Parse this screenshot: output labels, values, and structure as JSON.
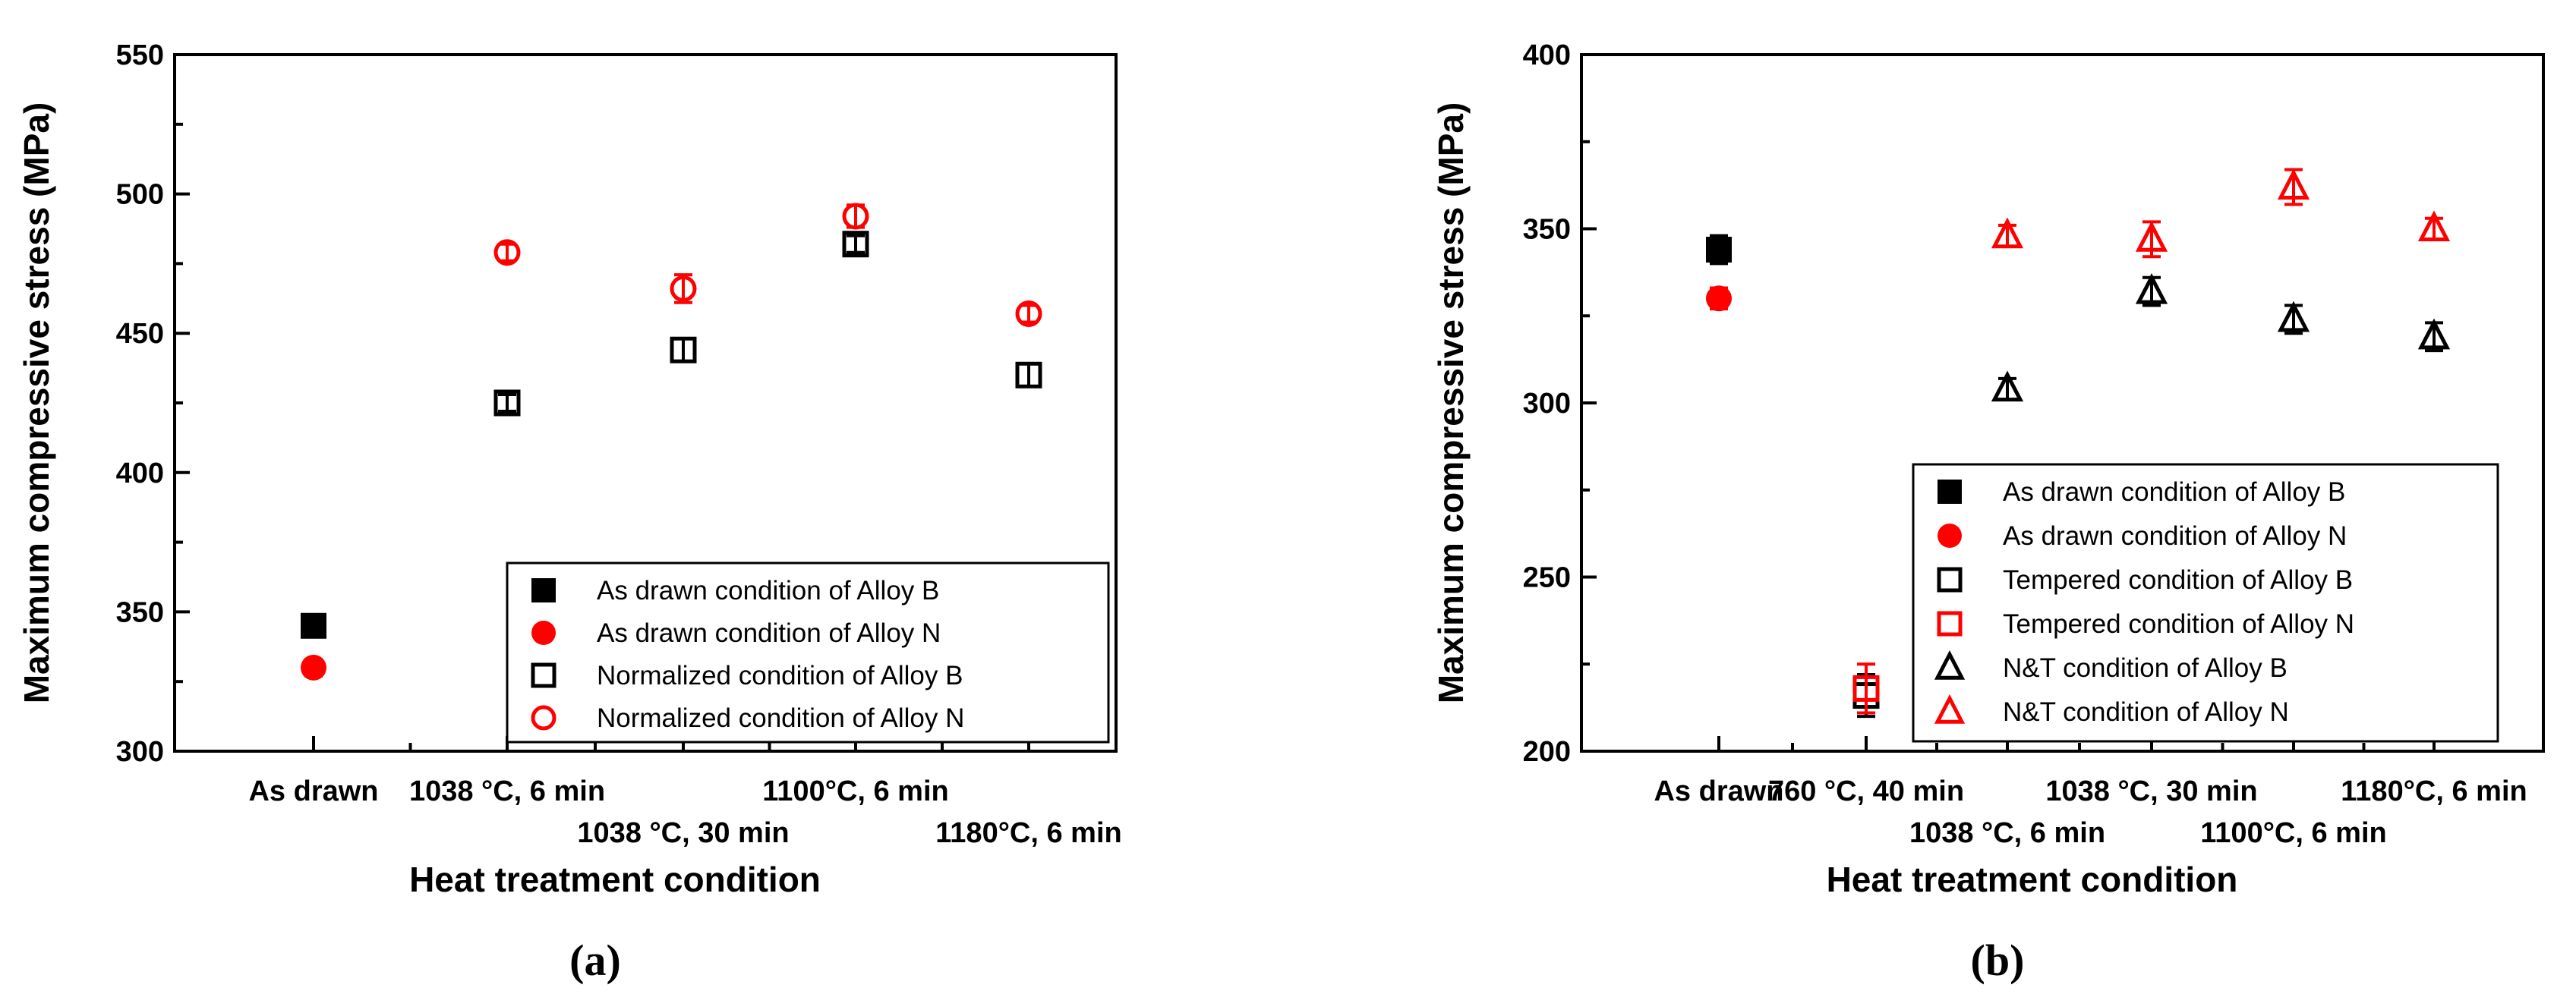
{
  "chart_data": [
    {
      "type": "scatter",
      "panel_label": "(a)",
      "xlabel": "Heat treatment condition",
      "ylabel": "Maximum compressive stress (MPa)",
      "ylim": [
        300,
        550
      ],
      "yticks": [
        300,
        350,
        400,
        450,
        500,
        550
      ],
      "categories": [
        "As drawn",
        "1038 °C, 6 min",
        "1038 °C, 30 min",
        "1100°C, 6 min",
        "1180°C, 6 min"
      ],
      "category_label_rows": [
        0,
        0,
        1,
        0,
        1
      ],
      "legend_position": "bottom-right",
      "series": [
        {
          "name": "As drawn condition of Alloy B",
          "marker": "square-filled",
          "color": "#000000",
          "points": [
            {
              "cat": 0,
              "y": 345,
              "err": 4
            }
          ]
        },
        {
          "name": "As drawn condition of Alloy N",
          "marker": "circle-filled",
          "color": "#ff0000",
          "points": [
            {
              "cat": 0,
              "y": 330,
              "err": 3
            }
          ]
        },
        {
          "name": "Normalized condition of Alloy B",
          "marker": "square-open",
          "color": "#000000",
          "points": [
            {
              "cat": 1,
              "y": 425,
              "err": 3
            },
            {
              "cat": 2,
              "y": 444,
              "err": 4
            },
            {
              "cat": 3,
              "y": 482,
              "err": 3
            },
            {
              "cat": 4,
              "y": 435,
              "err": 4
            }
          ]
        },
        {
          "name": "Normalized condition of Alloy N",
          "marker": "circle-open",
          "color": "#ff0000",
          "points": [
            {
              "cat": 1,
              "y": 479,
              "err": 3
            },
            {
              "cat": 2,
              "y": 466,
              "err": 5
            },
            {
              "cat": 3,
              "y": 492,
              "err": 4
            },
            {
              "cat": 4,
              "y": 457,
              "err": 3
            }
          ]
        }
      ]
    },
    {
      "type": "scatter",
      "panel_label": "(b)",
      "xlabel": "Heat treatment condition",
      "ylabel": "Maximum compressive stress (MPa)",
      "ylim": [
        200,
        400
      ],
      "yticks": [
        200,
        250,
        300,
        350,
        400
      ],
      "categories": [
        "As drawn",
        "760 °C, 40 min",
        "1038 °C, 6 min",
        "1038 °C, 30 min",
        "1100°C, 6 min",
        "1180°C, 6 min"
      ],
      "category_label_rows": [
        0,
        0,
        1,
        0,
        1,
        0
      ],
      "legend_position": "bottom-right",
      "series": [
        {
          "name": "As drawn condition of Alloy B",
          "marker": "square-filled",
          "color": "#000000",
          "points": [
            {
              "cat": 0,
              "y": 344,
              "err": 4
            }
          ]
        },
        {
          "name": "As drawn condition of Alloy N",
          "marker": "circle-filled",
          "color": "#ff0000",
          "points": [
            {
              "cat": 0,
              "y": 330,
              "err": 3
            }
          ]
        },
        {
          "name": "Tempered condition of Alloy B",
          "marker": "square-open",
          "color": "#000000",
          "points": [
            {
              "cat": 1,
              "y": 216,
              "err": 6
            }
          ]
        },
        {
          "name": "Tempered condition of Alloy N",
          "marker": "square-open",
          "color": "#ff0000",
          "points": [
            {
              "cat": 1,
              "y": 218,
              "err": 7
            }
          ]
        },
        {
          "name": "N&T condition of  Alloy B",
          "marker": "triangle-open",
          "color": "#000000",
          "points": [
            {
              "cat": 2,
              "y": 304,
              "err": 3
            },
            {
              "cat": 3,
              "y": 332,
              "err": 4
            },
            {
              "cat": 4,
              "y": 324,
              "err": 4
            },
            {
              "cat": 5,
              "y": 319,
              "err": 4
            }
          ]
        },
        {
          "name": "N&T condition of  Alloy N",
          "marker": "triangle-open",
          "color": "#ff0000",
          "points": [
            {
              "cat": 2,
              "y": 348,
              "err": 3
            },
            {
              "cat": 3,
              "y": 347,
              "err": 5
            },
            {
              "cat": 4,
              "y": 362,
              "err": 5
            },
            {
              "cat": 5,
              "y": 350,
              "err": 3
            }
          ]
        }
      ]
    }
  ]
}
